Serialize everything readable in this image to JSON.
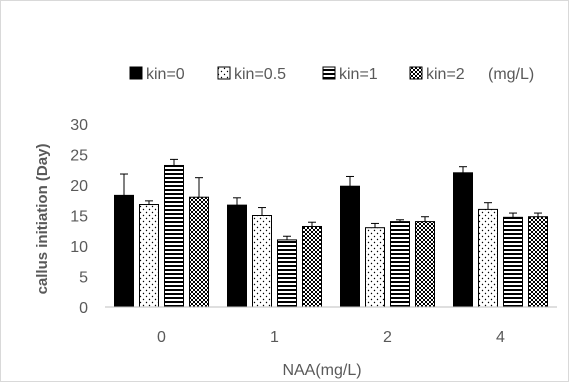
{
  "chart_data": {
    "type": "bar",
    "title": "",
    "xlabel": "NAA(mg/L)",
    "ylabel": "callus initiation (Day)",
    "categories": [
      "0",
      "1",
      "2",
      "4"
    ],
    "ylim": [
      0,
      30
    ],
    "yticks": [
      "0",
      "5",
      "10",
      "15",
      "20",
      "25",
      "30"
    ],
    "legend_position": "top",
    "legend_suffix": "(mg/L)",
    "grid": false,
    "error_bars": true,
    "series": [
      {
        "name": "kin=0",
        "pattern": "solid",
        "values": [
          18.3,
          16.7,
          19.8,
          22.0
        ],
        "errors": [
          3.5,
          1.2,
          1.6,
          1.0
        ]
      },
      {
        "name": "kin=0.5",
        "pattern": "dots",
        "values": [
          16.8,
          15.0,
          13.0,
          16.0
        ],
        "errors": [
          0.6,
          1.3,
          0.7,
          1.1
        ]
      },
      {
        "name": "kin=1",
        "pattern": "horizontal-lines",
        "values": [
          23.2,
          11.0,
          14.0,
          14.7
        ],
        "errors": [
          1.0,
          0.6,
          0.3,
          0.7
        ]
      },
      {
        "name": "kin=2",
        "pattern": "checker",
        "values": [
          18.0,
          13.2,
          14.0,
          14.8
        ],
        "errors": [
          3.2,
          0.7,
          0.8,
          0.6
        ]
      }
    ]
  }
}
